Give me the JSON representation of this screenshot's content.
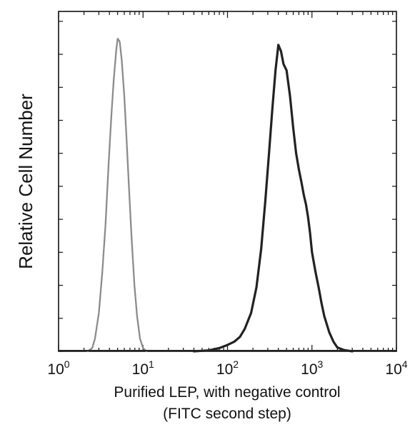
{
  "chart_data": {
    "type": "line",
    "title": "",
    "xlabel_lines": [
      "Purified LEP, with negative control",
      "(FITC second step)"
    ],
    "ylabel": "Relative Cell Number",
    "x_scale": "log",
    "xlim": [
      1,
      10000
    ],
    "ylim": [
      0,
      100
    ],
    "grid": false,
    "legend": "none",
    "x_ticks": [
      {
        "base": "10",
        "exp": "0"
      },
      {
        "base": "10",
        "exp": "1"
      },
      {
        "base": "10",
        "exp": "2"
      },
      {
        "base": "10",
        "exp": "3"
      },
      {
        "base": "10",
        "exp": "4"
      }
    ],
    "series": [
      {
        "style": "dotted",
        "color": "#8a8a8a",
        "points": [
          [
            2.2,
            0
          ],
          [
            2.5,
            1
          ],
          [
            2.7,
            4
          ],
          [
            3.0,
            12
          ],
          [
            3.3,
            25
          ],
          [
            3.6,
            40
          ],
          [
            3.9,
            58
          ],
          [
            4.2,
            73
          ],
          [
            4.5,
            85
          ],
          [
            4.8,
            94
          ],
          [
            5.0,
            98
          ],
          [
            5.3,
            97
          ],
          [
            5.6,
            91
          ],
          [
            6.0,
            80
          ],
          [
            6.4,
            66
          ],
          [
            6.8,
            52
          ],
          [
            7.3,
            36
          ],
          [
            7.9,
            21
          ],
          [
            8.5,
            11
          ],
          [
            9.2,
            4
          ],
          [
            10.0,
            1
          ],
          [
            11.0,
            0
          ]
        ]
      },
      {
        "style": "solid",
        "color": "#222222",
        "points": [
          [
            40,
            0
          ],
          [
            60,
            0.3
          ],
          [
            80,
            1
          ],
          [
            100,
            2
          ],
          [
            120,
            3
          ],
          [
            140,
            4.5
          ],
          [
            160,
            7
          ],
          [
            190,
            12
          ],
          [
            220,
            20
          ],
          [
            250,
            32
          ],
          [
            280,
            47
          ],
          [
            310,
            62
          ],
          [
            340,
            76
          ],
          [
            370,
            88
          ],
          [
            400,
            96
          ],
          [
            430,
            94
          ],
          [
            460,
            90
          ],
          [
            500,
            88
          ],
          [
            550,
            80
          ],
          [
            600,
            70
          ],
          [
            650,
            62
          ],
          [
            700,
            57
          ],
          [
            750,
            53
          ],
          [
            800,
            49
          ],
          [
            850,
            46
          ],
          [
            900,
            42
          ],
          [
            950,
            37
          ],
          [
            1000,
            31
          ],
          [
            1100,
            25
          ],
          [
            1200,
            20
          ],
          [
            1300,
            15
          ],
          [
            1400,
            11
          ],
          [
            1600,
            6
          ],
          [
            1800,
            3
          ],
          [
            2000,
            1.2
          ],
          [
            2400,
            0.4
          ],
          [
            3000,
            0
          ]
        ]
      }
    ]
  }
}
